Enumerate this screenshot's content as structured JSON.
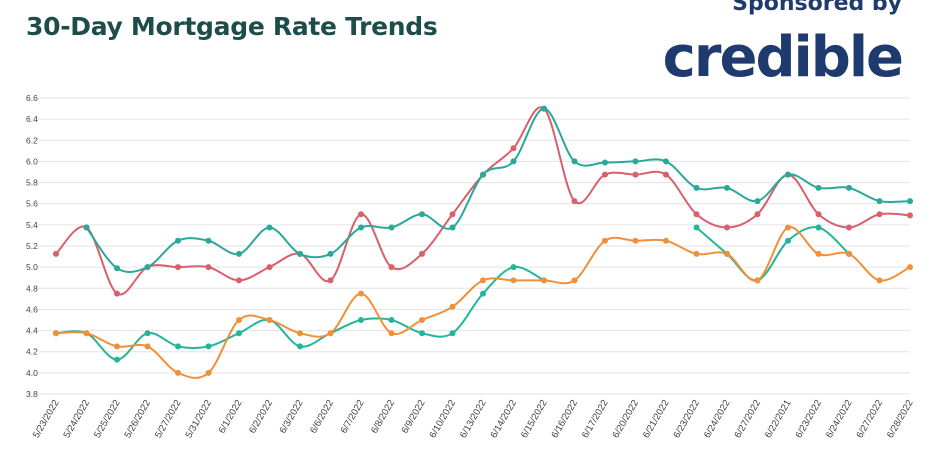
{
  "header": {
    "title": "30-Day Mortgage Rate Trends",
    "sponsor_label": "Sponsored by",
    "brand": "credible"
  },
  "chart_data": {
    "type": "line",
    "title": "30-Day Mortgage Rate Trends",
    "xlabel": "",
    "ylabel": "",
    "ylim": [
      3.8,
      6.6
    ],
    "yticks": [
      3.8,
      4.0,
      4.2,
      4.4,
      4.6,
      4.8,
      5.0,
      5.2,
      5.4,
      5.6,
      5.8,
      6.0,
      6.2,
      6.4,
      6.6
    ],
    "grid": true,
    "categories": [
      "5/23/2022",
      "5/24/2022",
      "5/25/2022",
      "5/26/2022",
      "5/27/2022",
      "5/31/2022",
      "6/1/2022",
      "6/2/2022",
      "6/3/2022",
      "6/6/2022",
      "6/7/2022",
      "6/8/2022",
      "6/9/2022",
      "6/10/2022",
      "6/13/2022",
      "6/14/2022",
      "6/15/2022",
      "6/16/2022",
      "6/17/2022",
      "6/20/2022",
      "6/21/2022",
      "6/23/2022",
      "6/24/2022",
      "6/27/2022",
      "6/22/2021",
      "6/23/2022",
      "6/24/2022",
      "6/27/2022",
      "6/28/2022"
    ],
    "series": [
      {
        "color": "#d95f6b",
        "values": [
          5.125,
          5.375,
          4.75,
          5.0,
          5.0,
          5.0,
          4.875,
          5.0,
          5.125,
          4.875,
          5.5,
          5.0,
          5.125,
          5.5,
          5.875,
          6.125,
          6.5,
          5.625,
          5.875,
          5.875,
          5.875,
          5.5,
          5.375,
          5.5,
          5.875,
          5.5,
          5.375,
          5.5,
          5.49
        ]
      },
      {
        "color": "#2aa89a",
        "values": [
          null,
          5.375,
          4.99,
          5.0,
          5.25,
          5.25,
          5.125,
          5.375,
          5.125,
          5.125,
          5.375,
          5.375,
          5.5,
          5.375,
          5.875,
          6.0,
          6.5,
          6.0,
          5.99,
          6.0,
          6.0,
          5.75,
          5.75,
          5.625,
          5.875,
          5.75,
          5.75,
          5.625,
          5.625
        ]
      },
      {
        "color": "#23b59b",
        "values": [
          4.375,
          4.375,
          4.125,
          4.375,
          4.25,
          4.25,
          4.375,
          4.5,
          4.25,
          4.375,
          4.5,
          4.5,
          4.375,
          4.375,
          4.75,
          5.0,
          4.875,
          null,
          null,
          null,
          null,
          5.375,
          5.125,
          4.875,
          5.25,
          5.375,
          5.125,
          null,
          null
        ]
      },
      {
        "color": "#f0903a",
        "values": [
          4.375,
          4.375,
          4.25,
          4.25,
          4.0,
          4.0,
          4.5,
          4.5,
          4.375,
          4.375,
          4.75,
          4.375,
          4.5,
          4.625,
          4.875,
          4.875,
          4.875,
          4.875,
          5.25,
          5.25,
          5.25,
          5.125,
          5.125,
          4.875,
          5.375,
          5.125,
          5.125,
          4.875,
          5.0
        ]
      }
    ]
  }
}
